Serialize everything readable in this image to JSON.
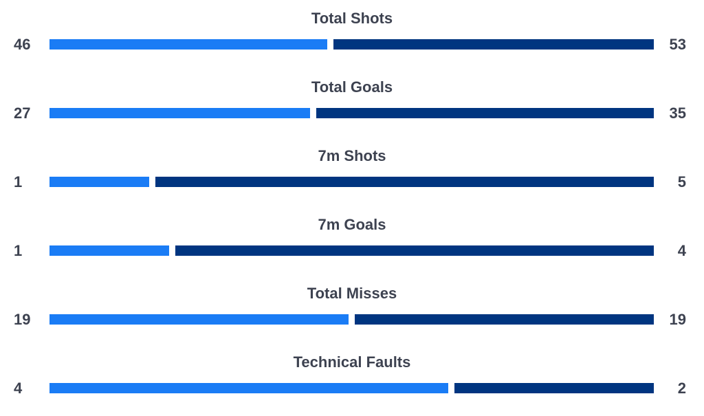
{
  "colors": {
    "left": "#1a7cf5",
    "right": "#003580",
    "text": "#3d4250"
  },
  "chart_data": {
    "type": "bar",
    "orientation": "horizontal-diverging",
    "categories": [
      "Total Shots",
      "Total Goals",
      "7m Shots",
      "7m Goals",
      "Total Misses",
      "Technical Faults"
    ],
    "series": [
      {
        "values": [
          46,
          27,
          1,
          1,
          19,
          4
        ]
      },
      {
        "values": [
          53,
          35,
          5,
          4,
          19,
          2
        ]
      }
    ],
    "grid": false,
    "legend": "none"
  }
}
